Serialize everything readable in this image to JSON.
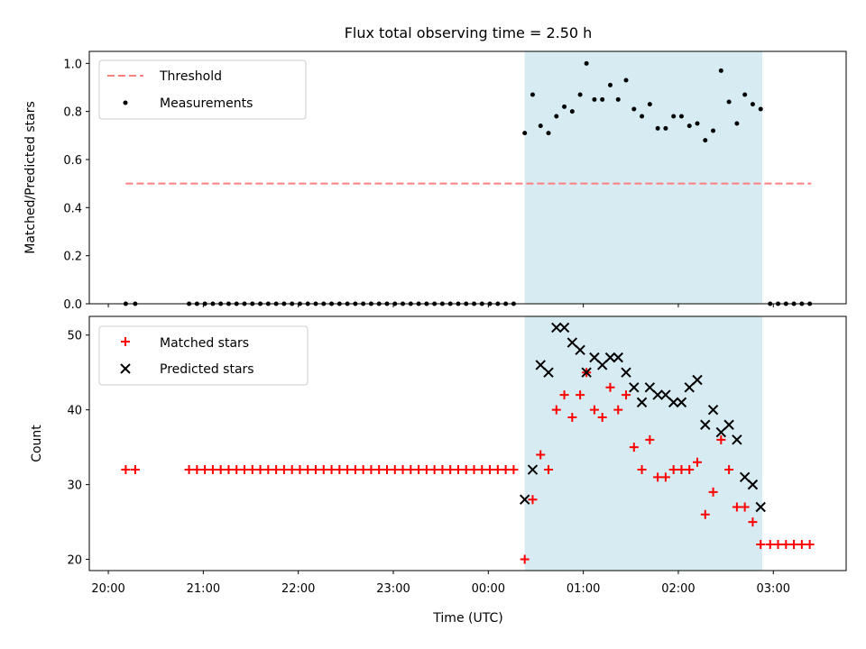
{
  "chart_data": [
    {
      "type": "scatter",
      "title": "Flux total observing time = 2.50 h",
      "xlabel": "",
      "ylabel": "Matched/Predicted stars",
      "ylim": [
        0,
        1.05
      ],
      "yticks": [
        0.0,
        0.2,
        0.4,
        0.6,
        0.8,
        1.0
      ],
      "ytick_labels": [
        "0.0",
        "0.2",
        "0.4",
        "0.6",
        "0.8",
        "1.0"
      ],
      "xlim": [
        "19:48",
        "03:46"
      ],
      "legend": {
        "placement": "top-left",
        "entries": [
          {
            "label": "Threshold",
            "style": "dashed-line",
            "color": "#ff7f7f"
          },
          {
            "label": "Measurements",
            "style": "dot",
            "color": "#000000"
          }
        ]
      },
      "shaded_span": {
        "start": "00:23",
        "end": "02:53",
        "color": "#add8e6"
      },
      "threshold": {
        "value": 0.5,
        "x_start": "20:11",
        "x_end": "03:24"
      },
      "series": [
        {
          "name": "Measurements",
          "color": "#000000",
          "x": [
            "20:11",
            "20:17",
            "20:51",
            "20:56",
            "21:01",
            "21:06",
            "21:11",
            "21:16",
            "21:21",
            "21:26",
            "21:31",
            "21:36",
            "21:41",
            "21:46",
            "21:51",
            "21:56",
            "22:01",
            "22:06",
            "22:11",
            "22:16",
            "22:21",
            "22:26",
            "22:31",
            "22:36",
            "22:41",
            "22:46",
            "22:51",
            "22:56",
            "23:01",
            "23:06",
            "23:11",
            "23:16",
            "23:21",
            "23:26",
            "23:31",
            "23:36",
            "23:41",
            "23:46",
            "23:51",
            "23:56",
            "00:01",
            "00:06",
            "00:11",
            "00:16",
            "00:23",
            "00:28",
            "00:33",
            "00:38",
            "00:43",
            "00:48",
            "00:53",
            "00:58",
            "01:02",
            "01:07",
            "01:12",
            "01:17",
            "01:22",
            "01:27",
            "01:32",
            "01:37",
            "01:42",
            "01:47",
            "01:52",
            "01:57",
            "02:02",
            "02:07",
            "02:12",
            "02:17",
            "02:22",
            "02:27",
            "02:32",
            "02:37",
            "02:42",
            "02:47",
            "02:52",
            "02:58",
            "03:03",
            "03:08",
            "03:13",
            "03:18",
            "03:23"
          ],
          "y": [
            0,
            0,
            0,
            0,
            0,
            0,
            0,
            0,
            0,
            0,
            0,
            0,
            0,
            0,
            0,
            0,
            0,
            0,
            0,
            0,
            0,
            0,
            0,
            0,
            0,
            0,
            0,
            0,
            0,
            0,
            0,
            0,
            0,
            0,
            0,
            0,
            0,
            0,
            0,
            0,
            0,
            0,
            0,
            0,
            0.71,
            0.87,
            0.74,
            0.71,
            0.78,
            0.82,
            0.8,
            0.87,
            1.0,
            0.85,
            0.85,
            0.91,
            0.85,
            0.93,
            0.81,
            0.78,
            0.83,
            0.73,
            0.73,
            0.78,
            0.78,
            0.74,
            0.75,
            0.68,
            0.72,
            0.97,
            0.84,
            0.75,
            0.87,
            0.83,
            0.81,
            0,
            0,
            0,
            0,
            0,
            0
          ]
        }
      ]
    },
    {
      "type": "scatter",
      "title": "",
      "xlabel": "Time (UTC)",
      "ylabel": "Count",
      "ylim": [
        18.5,
        52.5
      ],
      "yticks": [
        20,
        30,
        40,
        50
      ],
      "ytick_labels": [
        "20",
        "30",
        "40",
        "50"
      ],
      "xlim": [
        "19:48",
        "03:46"
      ],
      "xticks": [
        "20:00",
        "21:00",
        "22:00",
        "23:00",
        "00:00",
        "01:00",
        "02:00",
        "03:00"
      ],
      "legend": {
        "placement": "top-left",
        "entries": [
          {
            "label": "Matched stars",
            "style": "plus",
            "color": "#ff0000"
          },
          {
            "label": "Predicted stars",
            "style": "cross",
            "color": "#000000"
          }
        ]
      },
      "shaded_span": {
        "start": "00:23",
        "end": "02:53",
        "color": "#add8e6"
      },
      "series": [
        {
          "name": "Matched stars",
          "color": "#ff0000",
          "x": [
            "20:11",
            "20:17",
            "20:51",
            "20:56",
            "21:01",
            "21:06",
            "21:11",
            "21:16",
            "21:21",
            "21:26",
            "21:31",
            "21:36",
            "21:41",
            "21:46",
            "21:51",
            "21:56",
            "22:01",
            "22:06",
            "22:11",
            "22:16",
            "22:21",
            "22:26",
            "22:31",
            "22:36",
            "22:41",
            "22:46",
            "22:51",
            "22:56",
            "23:01",
            "23:06",
            "23:11",
            "23:16",
            "23:21",
            "23:26",
            "23:31",
            "23:36",
            "23:41",
            "23:46",
            "23:51",
            "23:56",
            "00:01",
            "00:06",
            "00:11",
            "00:16",
            "00:23",
            "00:28",
            "00:33",
            "00:38",
            "00:43",
            "00:48",
            "00:53",
            "00:58",
            "01:02",
            "01:07",
            "01:12",
            "01:17",
            "01:22",
            "01:27",
            "01:32",
            "01:37",
            "01:42",
            "01:47",
            "01:52",
            "01:57",
            "02:02",
            "02:07",
            "02:12",
            "02:17",
            "02:22",
            "02:27",
            "02:32",
            "02:37",
            "02:42",
            "02:47",
            "02:52",
            "02:58",
            "03:03",
            "03:08",
            "03:13",
            "03:18",
            "03:23"
          ],
          "y": [
            32,
            32,
            32,
            32,
            32,
            32,
            32,
            32,
            32,
            32,
            32,
            32,
            32,
            32,
            32,
            32,
            32,
            32,
            32,
            32,
            32,
            32,
            32,
            32,
            32,
            32,
            32,
            32,
            32,
            32,
            32,
            32,
            32,
            32,
            32,
            32,
            32,
            32,
            32,
            32,
            32,
            32,
            32,
            32,
            20,
            28,
            34,
            32,
            40,
            42,
            39,
            42,
            45,
            40,
            39,
            43,
            40,
            42,
            35,
            32,
            36,
            31,
            31,
            32,
            32,
            32,
            33,
            26,
            29,
            36,
            32,
            27,
            27,
            25,
            22,
            22,
            22,
            22,
            22,
            22,
            22
          ]
        },
        {
          "name": "Predicted stars",
          "color": "#000000",
          "x": [
            "00:23",
            "00:28",
            "00:33",
            "00:38",
            "00:43",
            "00:48",
            "00:53",
            "00:58",
            "01:02",
            "01:07",
            "01:12",
            "01:17",
            "01:22",
            "01:27",
            "01:32",
            "01:37",
            "01:42",
            "01:47",
            "01:52",
            "01:57",
            "02:02",
            "02:07",
            "02:12",
            "02:17",
            "02:22",
            "02:27",
            "02:32",
            "02:37",
            "02:42",
            "02:47",
            "02:52"
          ],
          "y": [
            28,
            32,
            46,
            45,
            51,
            51,
            49,
            48,
            45,
            47,
            46,
            47,
            47,
            45,
            43,
            41,
            43,
            42,
            42,
            41,
            41,
            43,
            44,
            38,
            40,
            37,
            38,
            36,
            31,
            30,
            27
          ]
        }
      ]
    }
  ]
}
